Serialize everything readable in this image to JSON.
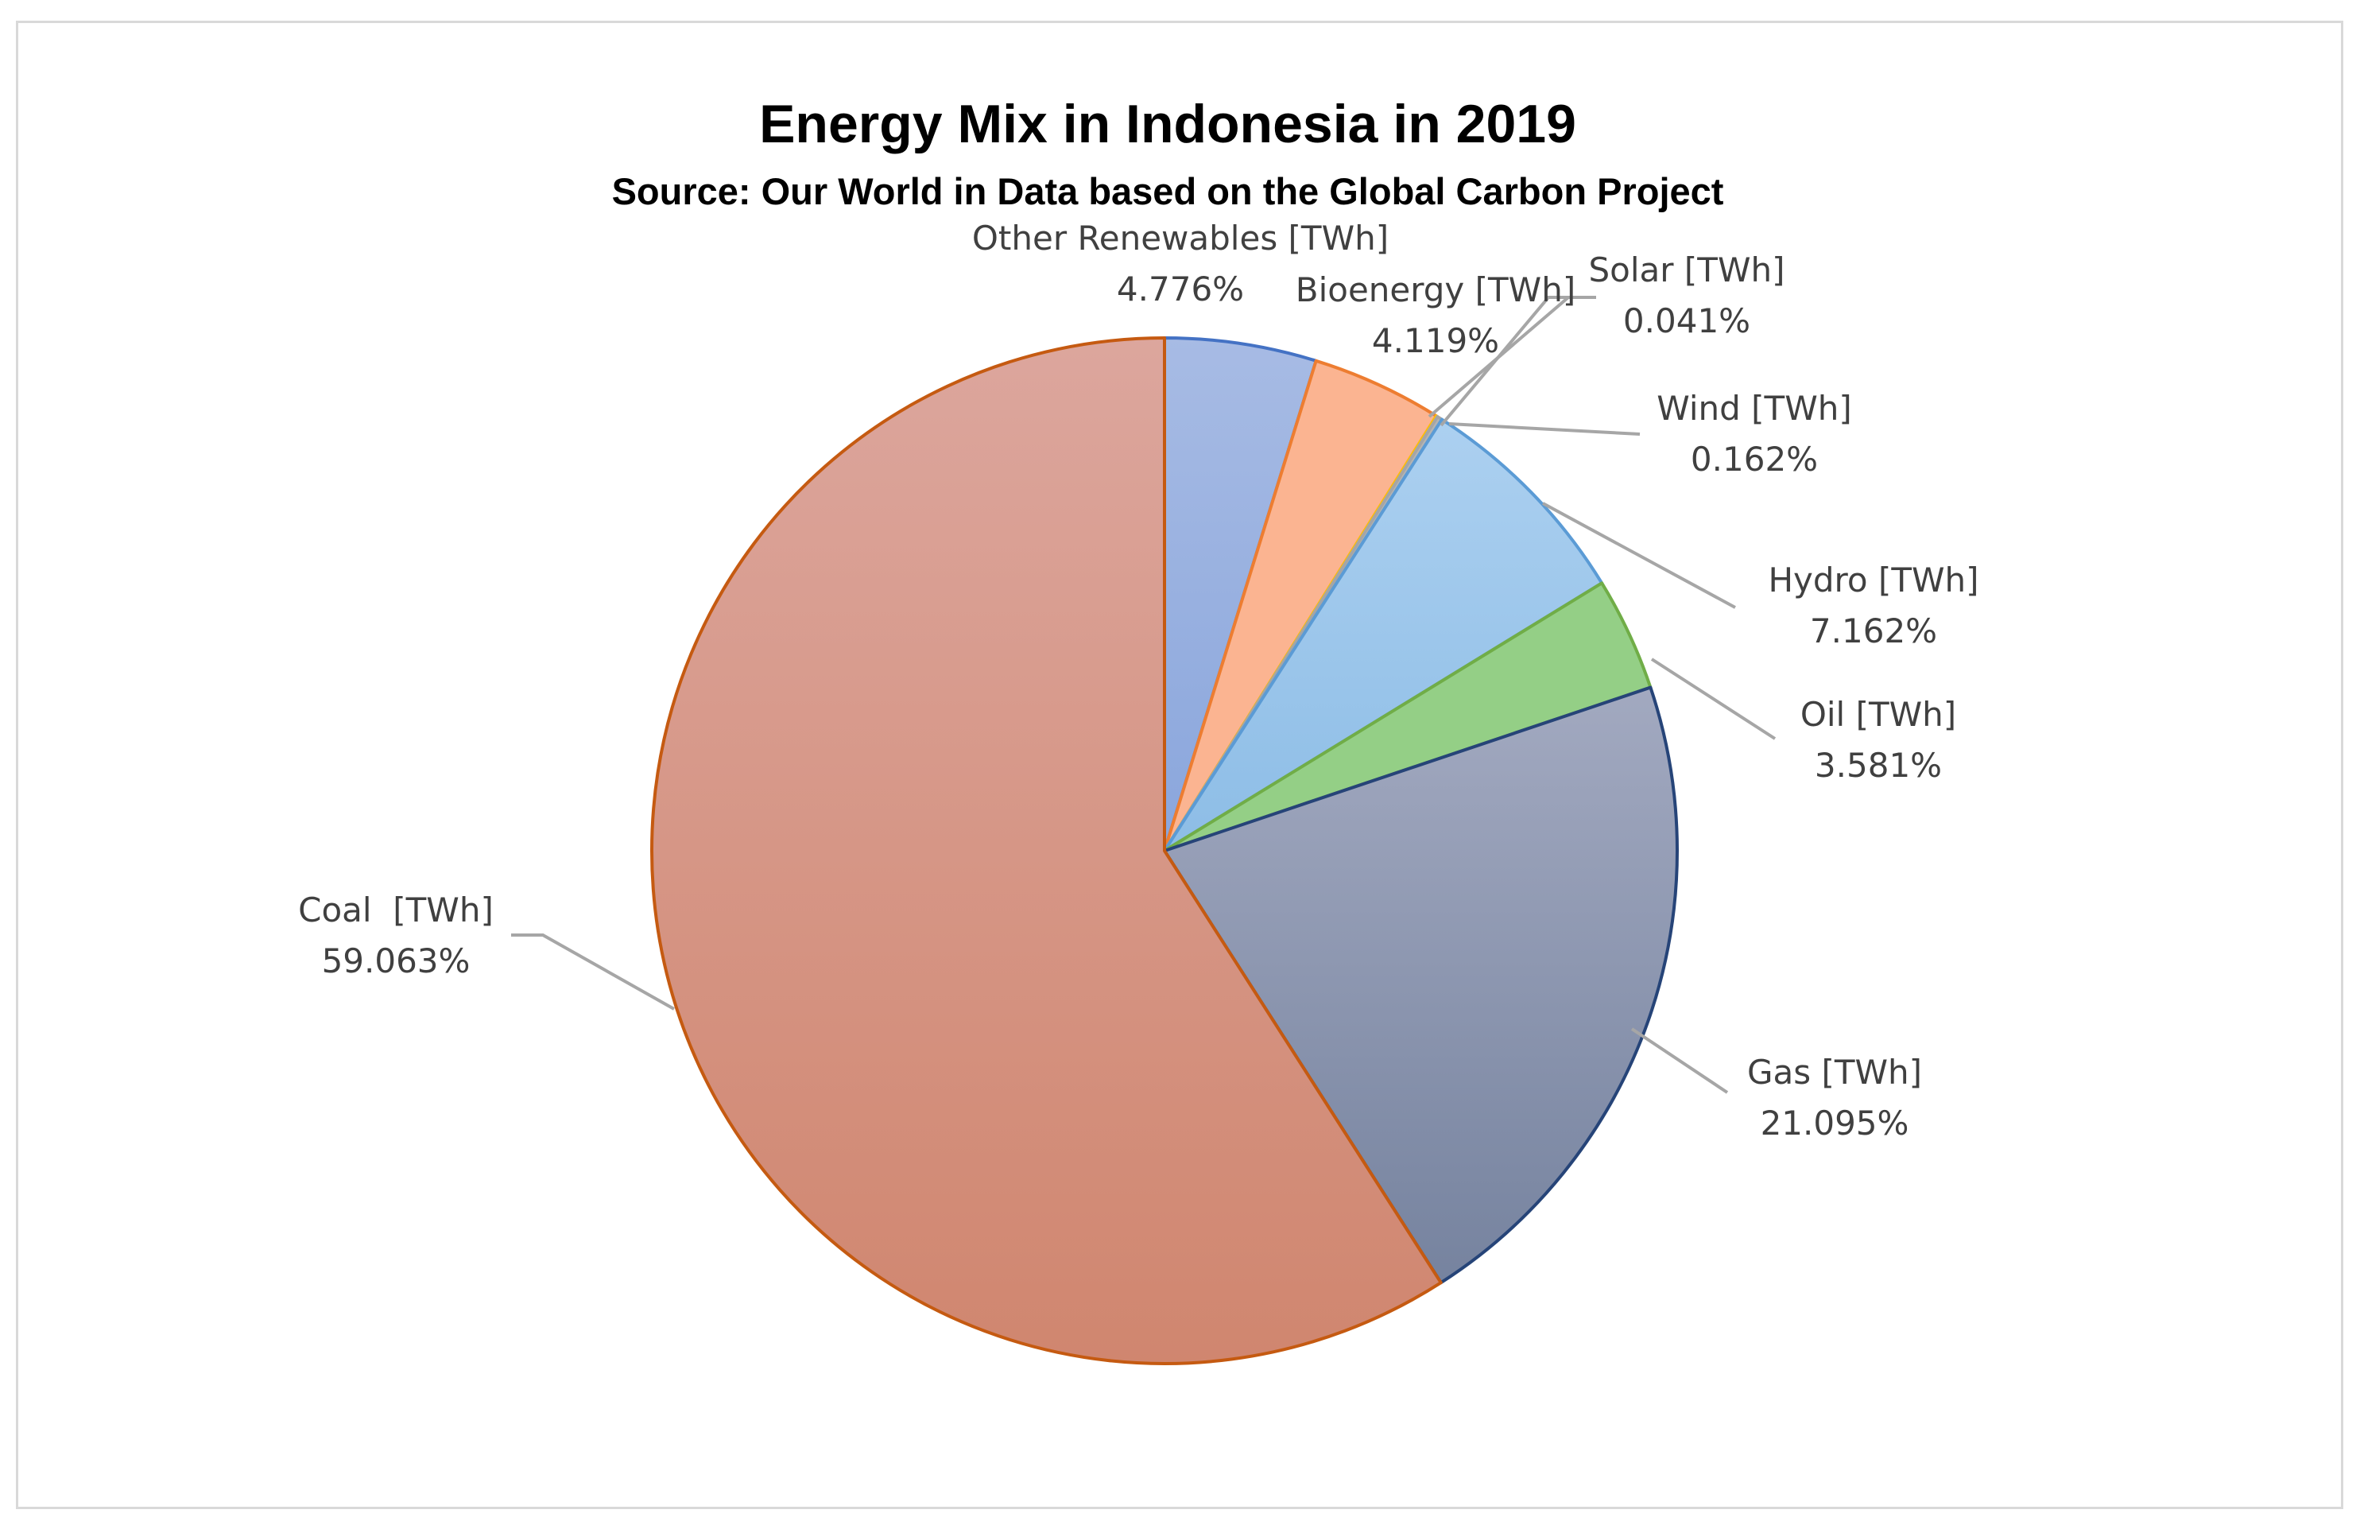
{
  "chart_data": {
    "type": "pie",
    "title": "Energy Mix in Indonesia in 2019",
    "subtitle": "Source: Our World in Data based on the Global Carbon Project",
    "start_angle_deg": 0,
    "direction": "clockwise",
    "slices": [
      {
        "name": "Other Renewables [TWh]",
        "percent_label": "4.776%",
        "value": 4.776,
        "color": "#95aee0",
        "stroke": "#4472c4"
      },
      {
        "name": "Bioenergy [TWh]",
        "percent_label": "4.119%",
        "value": 4.119,
        "color": "#fbb491",
        "stroke": "#ed7d31"
      },
      {
        "name": "Solar [TWh]",
        "percent_label": "0.041%",
        "value": 0.041,
        "color": "#f2c14b",
        "stroke": "#ffc000"
      },
      {
        "name": "Wind [TWh]",
        "percent_label": "0.162%",
        "value": 0.162,
        "color": "#b4b4b4",
        "stroke": "#a5a5a5"
      },
      {
        "name": "Hydro [TWh]",
        "percent_label": "7.162%",
        "value": 7.162,
        "color": "#9cc6ea",
        "stroke": "#5b9bd5"
      },
      {
        "name": "Oil [TWh]",
        "percent_label": "3.581%",
        "value": 3.581,
        "color": "#94cf86",
        "stroke": "#70ad47"
      },
      {
        "name": "Gas [TWh]",
        "percent_label": "21.095%",
        "value": 21.095,
        "color": "#8c97b4",
        "stroke": "#264478"
      },
      {
        "name": "Coal  [TWh]",
        "percent_label": "59.063%",
        "value": 59.063,
        "color": "#d6958a",
        "stroke": "#c55a11"
      }
    ]
  }
}
